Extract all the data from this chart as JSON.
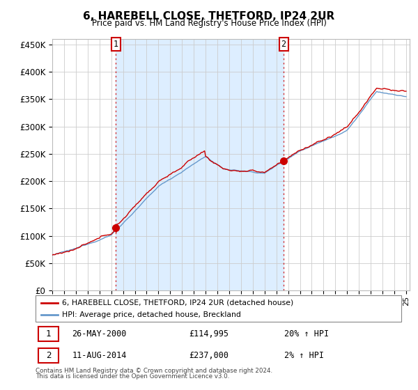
{
  "title": "6, HAREBELL CLOSE, THETFORD, IP24 2UR",
  "subtitle": "Price paid vs. HM Land Registry's House Price Index (HPI)",
  "ylim": [
    0,
    450000
  ],
  "yticks": [
    0,
    50000,
    100000,
    150000,
    200000,
    250000,
    300000,
    350000,
    400000,
    450000
  ],
  "x_start_year": 1995,
  "x_end_year": 2025,
  "sale1_year": 2000.38,
  "sale1_price": 114995,
  "sale2_year": 2014.62,
  "sale2_price": 237000,
  "line_color_red": "#cc0000",
  "line_color_blue": "#6699cc",
  "fill_color_between_sales": "#ddeeff",
  "grid_color": "#cccccc",
  "bg_color": "#ffffff",
  "legend_line1": "6, HAREBELL CLOSE, THETFORD, IP24 2UR (detached house)",
  "legend_line2": "HPI: Average price, detached house, Breckland",
  "annotation1_label": "1",
  "annotation1_date": "26-MAY-2000",
  "annotation1_price": "£114,995",
  "annotation1_hpi": "20% ↑ HPI",
  "annotation2_label": "2",
  "annotation2_date": "11-AUG-2014",
  "annotation2_price": "£237,000",
  "annotation2_hpi": "2% ↑ HPI",
  "footnote1": "Contains HM Land Registry data © Crown copyright and database right 2024.",
  "footnote2": "This data is licensed under the Open Government Licence v3.0."
}
